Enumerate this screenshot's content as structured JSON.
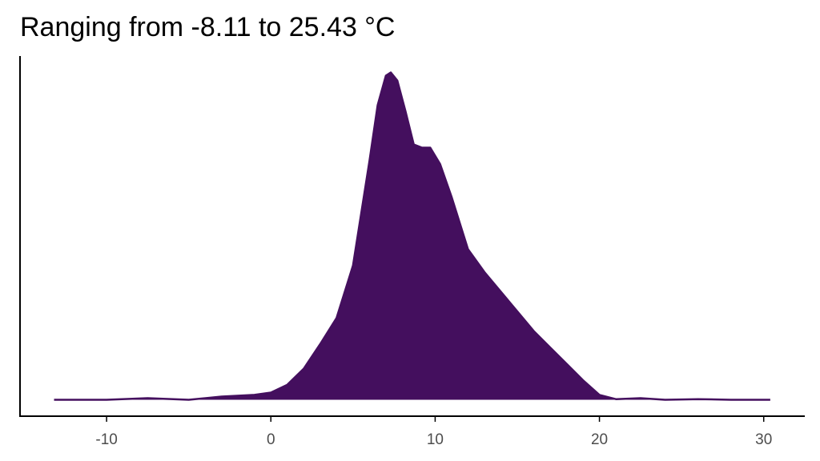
{
  "chart_data": {
    "type": "density",
    "title": "Ranging from -8.11 to 25.43 °C",
    "x": [
      -13.2,
      -10,
      -7.5,
      -5,
      -3,
      -1,
      0,
      1,
      2,
      3,
      4,
      5,
      6,
      6.5,
      7,
      7.3,
      7.7,
      8.2,
      8.7,
      9.2,
      9.7,
      10.3,
      11,
      12,
      13,
      14,
      15,
      16,
      17,
      18,
      19,
      20,
      21,
      22.5,
      24,
      26,
      28,
      30.4
    ],
    "values": [
      0,
      0,
      0.0005,
      0,
      0.001,
      0.0015,
      0.0022,
      0.0046,
      0.0095,
      0.017,
      0.025,
      0.041,
      0.073,
      0.09,
      0.099,
      0.1,
      0.0975,
      0.088,
      0.078,
      0.077,
      0.077,
      0.072,
      0.062,
      0.046,
      0.039,
      0.033,
      0.027,
      0.021,
      0.016,
      0.011,
      0.006,
      0.0015,
      0.0002,
      0.0005,
      0,
      0.0002,
      0,
      0
    ],
    "color": "#440f5e",
    "xlim": [
      -15.27,
      32.5
    ],
    "xticks": [
      -10,
      0,
      10,
      20,
      30
    ],
    "ylim": [
      -0.005,
      0.105
    ]
  }
}
